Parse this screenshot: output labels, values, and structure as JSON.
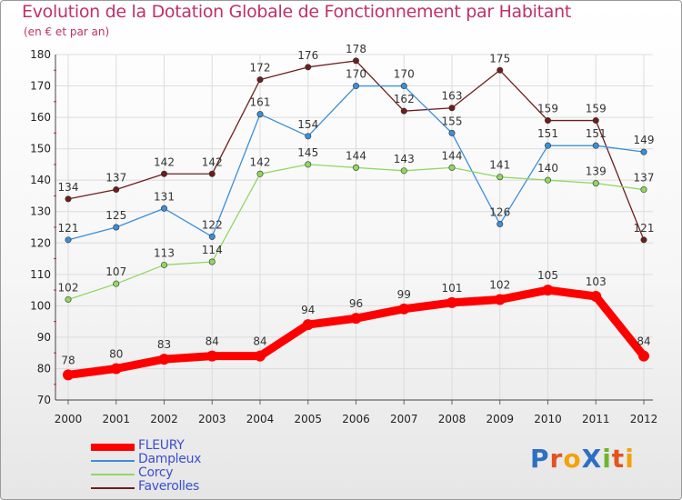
{
  "header": {
    "title": "Evolution de la Dotation Globale de Fonctionnement par Habitant",
    "subtitle": "(en € et par an)"
  },
  "brand": {
    "text": "ProXiti",
    "colors": [
      "#2d6fc4",
      "#e2531f",
      "#f2a20c",
      "#2d6fc4",
      "#6cb52d",
      "#e2531f",
      "#f2a20c"
    ]
  },
  "chart_data": {
    "type": "line",
    "title": "Evolution de la Dotation Globale de Fonctionnement par Habitant",
    "subtitle": "(en € et par an)",
    "x": [
      "2000",
      "2001",
      "2002",
      "2003",
      "2004",
      "2005",
      "2006",
      "2007",
      "2008",
      "2009",
      "2010",
      "2011",
      "2012"
    ],
    "ylim": [
      70,
      180
    ],
    "yticks": [
      70,
      80,
      90,
      100,
      110,
      120,
      130,
      140,
      150,
      160,
      170,
      180
    ],
    "grid": true,
    "legend": "bottom-left",
    "series": [
      {
        "name": "FLEURY",
        "color": "#ff0000",
        "values": [
          78,
          80,
          83,
          84,
          84,
          94,
          96,
          99,
          101,
          102,
          105,
          103,
          84
        ]
      },
      {
        "name": "Dampleux",
        "color": "#3b8fd8",
        "values": [
          121,
          125,
          131,
          122,
          161,
          154,
          170,
          170,
          155,
          126,
          151,
          151,
          149
        ]
      },
      {
        "name": "Corcy",
        "color": "#8fd860",
        "values": [
          102,
          107,
          113,
          114,
          142,
          145,
          144,
          143,
          144,
          141,
          140,
          139,
          137
        ]
      },
      {
        "name": "Faverolles",
        "color": "#6e1d1d",
        "values": [
          134,
          137,
          142,
          142,
          172,
          176,
          178,
          162,
          163,
          175,
          159,
          159,
          121
        ]
      }
    ]
  }
}
